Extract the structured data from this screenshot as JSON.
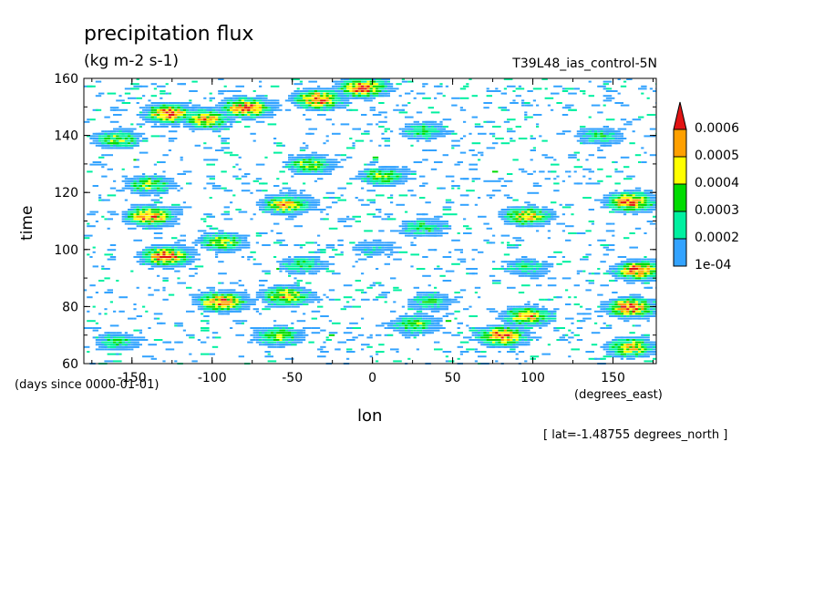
{
  "chart_data": {
    "type": "heatmap",
    "title": "precipitation flux",
    "units": "(kg m-2 s-1)",
    "subtitle": "T39L48_ias_control-5N",
    "xlabel": "lon",
    "ylabel": "time",
    "x_units": "(degrees_east)",
    "y_units": "(days since 0000-01-01)",
    "fixed_coordinate": "[ lat=-1.48755 degrees_north ]",
    "xlim": [
      -180,
      177
    ],
    "ylim": [
      60,
      160
    ],
    "x_ticks": [
      "-150",
      "-100",
      "-50",
      "0",
      "50",
      "100",
      "150"
    ],
    "x_tick_values": [
      -150,
      -100,
      -50,
      0,
      50,
      100,
      150
    ],
    "y_ticks": [
      "60",
      "80",
      "100",
      "120",
      "140",
      "160"
    ],
    "y_tick_values": [
      60,
      80,
      100,
      120,
      140,
      160
    ],
    "colorbar": {
      "labels": [
        "1e-04",
        "0.0002",
        "0.0003",
        "0.0004",
        "0.0005",
        "0.0006"
      ],
      "levels": [
        0.0001,
        0.0002,
        0.0003,
        0.0004,
        0.0005,
        0.0006
      ],
      "colors": [
        "#33a3ff",
        "#00f0a0",
        "#00dc00",
        "#ffff00",
        "#ffa000",
        "#e11414"
      ],
      "extend": "max"
    },
    "clusters": [
      {
        "lon": -128,
        "time": 148,
        "peak": 0.0006
      },
      {
        "lon": -80,
        "time": 150,
        "peak": 0.0006
      },
      {
        "lon": -105,
        "time": 146,
        "peak": 0.0005
      },
      {
        "lon": -35,
        "time": 153,
        "peak": 0.0006
      },
      {
        "lon": -7,
        "time": 157,
        "peak": 0.0006
      },
      {
        "lon": 30,
        "time": 142,
        "peak": 0.0003
      },
      {
        "lon": 140,
        "time": 140,
        "peak": 0.0003
      },
      {
        "lon": -160,
        "time": 139,
        "peak": 0.0004
      },
      {
        "lon": -40,
        "time": 130,
        "peak": 0.0004
      },
      {
        "lon": 5,
        "time": 126,
        "peak": 0.0004
      },
      {
        "lon": -140,
        "time": 123,
        "peak": 0.0004
      },
      {
        "lon": -140,
        "time": 112,
        "peak": 0.0006
      },
      {
        "lon": -55,
        "time": 116,
        "peak": 0.0005
      },
      {
        "lon": 30,
        "time": 108,
        "peak": 0.0003
      },
      {
        "lon": 95,
        "time": 112,
        "peak": 0.0005
      },
      {
        "lon": 160,
        "time": 117,
        "peak": 0.0006
      },
      {
        "lon": -130,
        "time": 98,
        "peak": 0.0006
      },
      {
        "lon": -45,
        "time": 95,
        "peak": 0.0003
      },
      {
        "lon": 0,
        "time": 101,
        "peak": 0.0002
      },
      {
        "lon": 95,
        "time": 94,
        "peak": 0.0003
      },
      {
        "lon": 165,
        "time": 93,
        "peak": 0.0006
      },
      {
        "lon": -95,
        "time": 82,
        "peak": 0.0006
      },
      {
        "lon": -55,
        "time": 84,
        "peak": 0.0005
      },
      {
        "lon": 35,
        "time": 82,
        "peak": 0.0003
      },
      {
        "lon": 95,
        "time": 77,
        "peak": 0.0005
      },
      {
        "lon": 160,
        "time": 80,
        "peak": 0.0006
      },
      {
        "lon": -160,
        "time": 68,
        "peak": 0.0003
      },
      {
        "lon": -60,
        "time": 70,
        "peak": 0.0004
      },
      {
        "lon": 25,
        "time": 74,
        "peak": 0.0004
      },
      {
        "lon": 80,
        "time": 70,
        "peak": 0.0006
      },
      {
        "lon": 160,
        "time": 66,
        "peak": 0.0005
      },
      {
        "lon": -95,
        "time": 103,
        "peak": 0.0004
      }
    ]
  }
}
